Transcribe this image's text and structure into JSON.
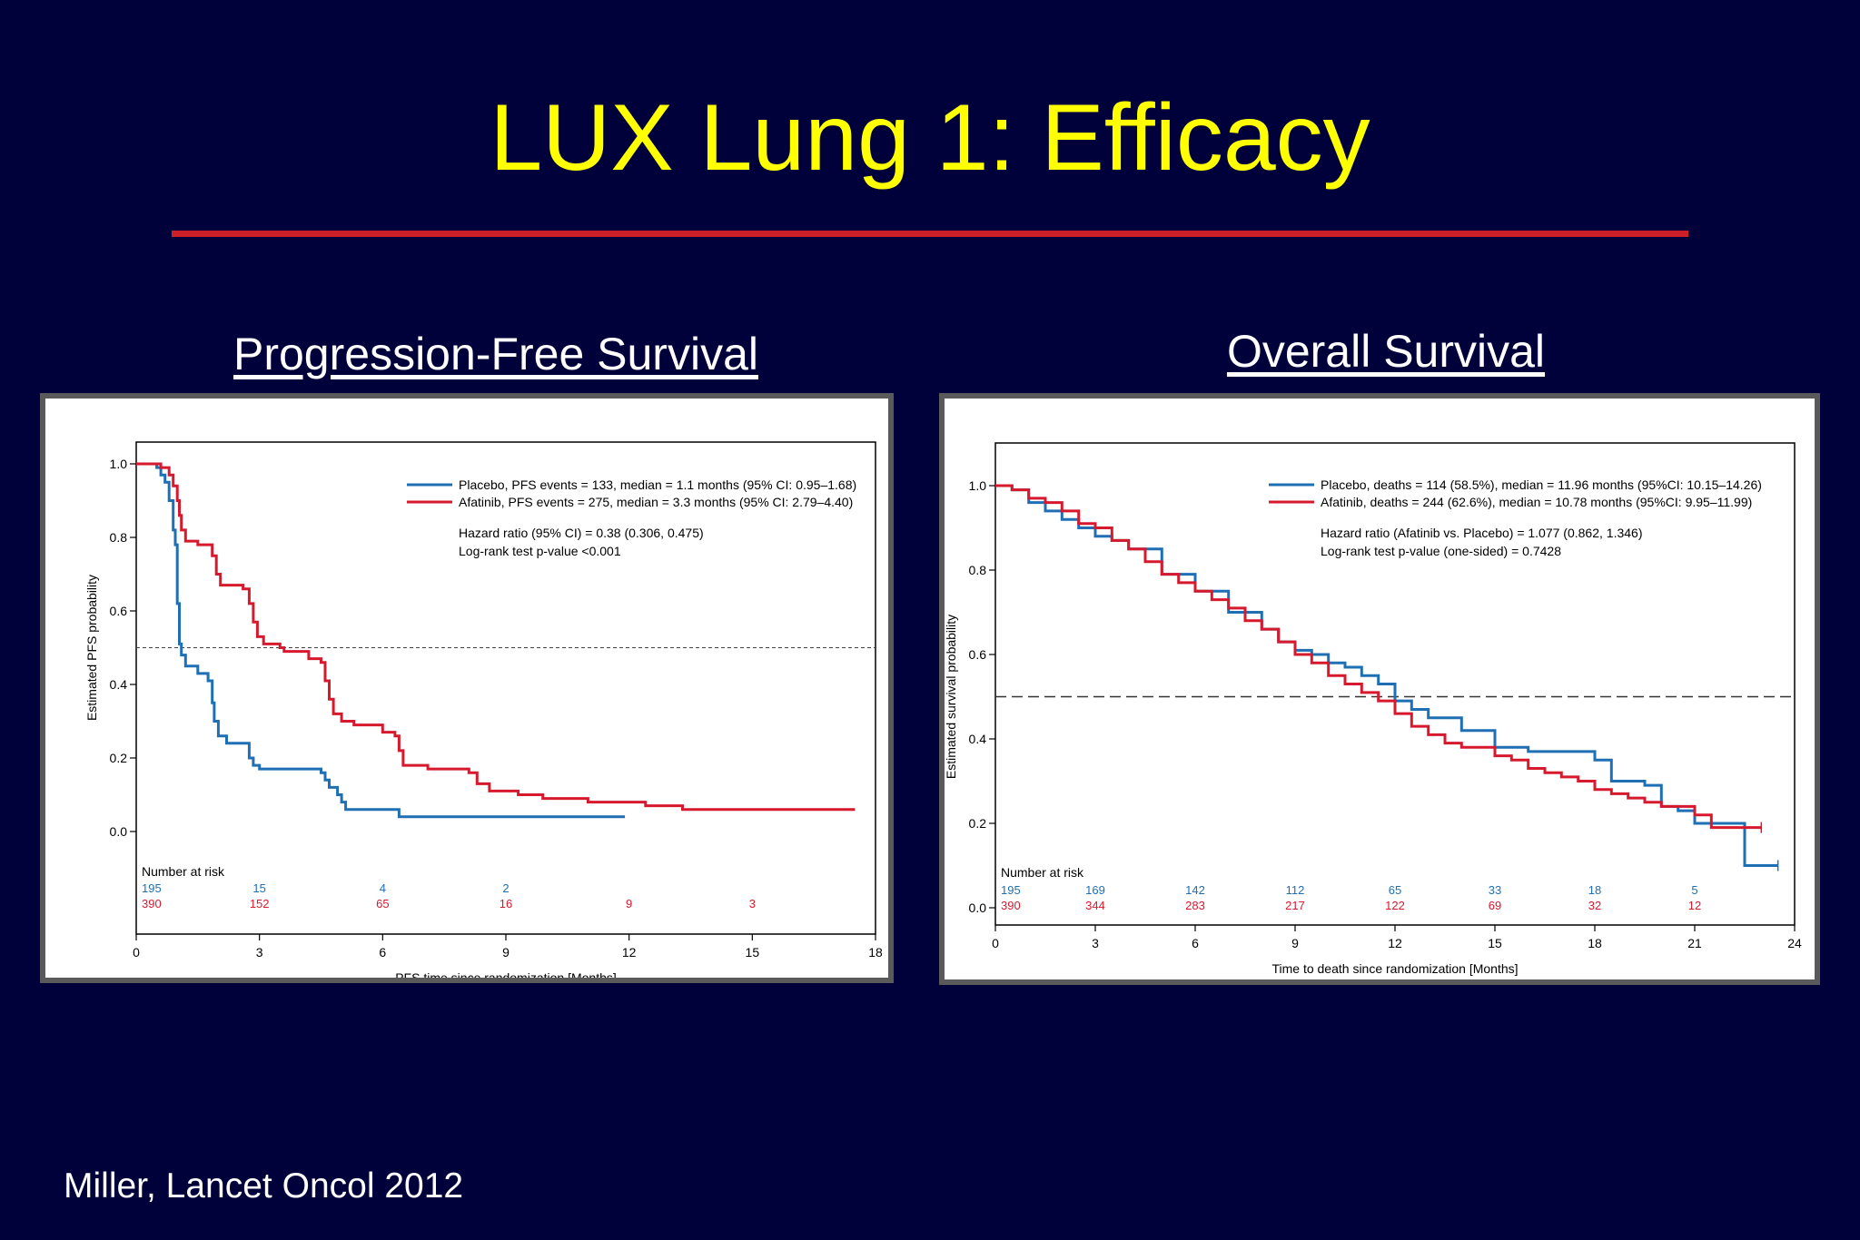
{
  "slide": {
    "title": "LUX Lung 1: Efficacy",
    "citation": "Miller, Lancet Oncol 2012",
    "colors": {
      "background": "#00003a",
      "title": "#ffff00",
      "rule": "#cc1f2a",
      "heading": "#ffffff",
      "placebo": "#1f6fb5",
      "afatinib": "#d7192e"
    }
  },
  "chart_data": [
    {
      "type": "line",
      "heading": "Progression-Free Survival",
      "xlabel": "PFS time since randomization [Months]",
      "ylabel": "Estimated PFS probability",
      "xlim": [
        0,
        18
      ],
      "ylim": [
        0,
        1
      ],
      "xticks": [
        "0",
        "3",
        "6",
        "9",
        "12",
        "15",
        "18"
      ],
      "yticks": [
        "0.0",
        "0.2",
        "0.4",
        "0.6",
        "0.8",
        "1.0"
      ],
      "reference_line": 0.5,
      "legend_placement": "top-right",
      "legend": [
        "Placebo, PFS events = 133, median = 1.1 months (95% CI: 0.95–1.68)",
        "Afatinib, PFS events = 275, median = 3.3 months (95% CI: 2.79–4.40)"
      ],
      "annotations": [
        "Hazard ratio (95% CI) = 0.38 (0.306, 0.475)",
        "Log-rank test p-value <0.001"
      ],
      "risk_table": {
        "title": "Number at risk",
        "times": [
          0,
          3,
          6,
          9,
          12,
          15
        ],
        "rows": [
          {
            "name": "Placebo",
            "values": [
              "195",
              "15",
              "4",
              "2",
              "",
              ""
            ]
          },
          {
            "name": "Afatinib",
            "values": [
              "390",
              "152",
              "65",
              "16",
              "9",
              "3"
            ]
          }
        ]
      },
      "series": [
        {
          "name": "Placebo",
          "x": [
            0,
            0.4,
            0.5,
            0.6,
            0.7,
            0.8,
            0.9,
            0.95,
            1.0,
            1.05,
            1.1,
            1.2,
            1.3,
            1.5,
            1.75,
            1.85,
            1.9,
            2.0,
            2.2,
            2.6,
            2.75,
            2.85,
            3.0,
            3.3,
            4.5,
            4.6,
            4.7,
            4.9,
            5.0,
            5.1,
            6.3,
            6.4,
            11.9
          ],
          "y": [
            1.0,
            1.0,
            0.99,
            0.97,
            0.95,
            0.9,
            0.82,
            0.78,
            0.62,
            0.51,
            0.48,
            0.45,
            0.45,
            0.43,
            0.41,
            0.35,
            0.3,
            0.26,
            0.24,
            0.24,
            0.2,
            0.18,
            0.17,
            0.17,
            0.16,
            0.14,
            0.12,
            0.1,
            0.08,
            0.06,
            0.06,
            0.04,
            0.04
          ]
        },
        {
          "name": "Afatinib",
          "x": [
            0,
            0.6,
            0.8,
            0.9,
            1.0,
            1.05,
            1.1,
            1.2,
            1.5,
            1.85,
            1.95,
            2.05,
            2.6,
            2.75,
            2.85,
            2.95,
            3.1,
            3.5,
            3.6,
            4.2,
            4.5,
            4.6,
            4.7,
            4.8,
            5.0,
            5.3,
            6.0,
            6.3,
            6.4,
            6.5,
            7.1,
            8.1,
            8.3,
            8.6,
            9.3,
            9.9,
            10.0,
            11.0,
            12.4,
            13.3,
            17.5
          ],
          "y": [
            1.0,
            0.99,
            0.97,
            0.94,
            0.9,
            0.86,
            0.82,
            0.79,
            0.78,
            0.75,
            0.7,
            0.67,
            0.66,
            0.62,
            0.57,
            0.53,
            0.51,
            0.5,
            0.49,
            0.47,
            0.46,
            0.41,
            0.36,
            0.32,
            0.3,
            0.29,
            0.27,
            0.26,
            0.22,
            0.18,
            0.17,
            0.16,
            0.13,
            0.11,
            0.1,
            0.09,
            0.09,
            0.08,
            0.07,
            0.06,
            0.06
          ]
        }
      ]
    },
    {
      "type": "line",
      "heading": "Overall Survival",
      "xlabel": "Time to death since randomization [Months]",
      "ylabel": "Estimated survival probability",
      "xlim": [
        0,
        24
      ],
      "ylim": [
        0,
        1
      ],
      "xticks": [
        "0",
        "3",
        "6",
        "9",
        "12",
        "15",
        "18",
        "21",
        "24"
      ],
      "yticks": [
        "0.0",
        "0.2",
        "0.4",
        "0.6",
        "0.8",
        "1.0"
      ],
      "reference_line": 0.5,
      "legend_placement": "top-right",
      "legend": [
        "Placebo, deaths = 114 (58.5%), median = 11.96 months (95%CI: 10.15–14.26)",
        "Afatinib, deaths = 244 (62.6%), median = 10.78 months (95%CI: 9.95–11.99)"
      ],
      "annotations": [
        "Hazard ratio (Afatinib vs. Placebo) = 1.077 (0.862, 1.346)",
        "Log-rank test p-value (one-sided) = 0.7428"
      ],
      "risk_table": {
        "title": "Number at risk",
        "times": [
          0,
          3,
          6,
          9,
          12,
          15,
          18,
          21
        ],
        "rows": [
          {
            "name": "Placebo",
            "values": [
              "195",
              "169",
              "142",
              "112",
              "65",
              "33",
              "18",
              "5"
            ]
          },
          {
            "name": "Afatinib",
            "values": [
              "390",
              "344",
              "283",
              "217",
              "122",
              "69",
              "32",
              "12"
            ]
          }
        ]
      },
      "series": [
        {
          "name": "Placebo",
          "x": [
            0,
            0.5,
            1.0,
            1.5,
            2.0,
            2.5,
            3.0,
            3.5,
            4.0,
            5.0,
            6.0,
            7.0,
            8.0,
            8.5,
            9.0,
            9.5,
            10.0,
            10.5,
            11.0,
            11.5,
            12.0,
            12.5,
            13.0,
            14.0,
            15.0,
            16.0,
            17.0,
            18.0,
            18.5,
            19.0,
            19.5,
            20.0,
            20.5,
            21.0,
            22.0,
            22.5,
            23.5
          ],
          "y": [
            1.0,
            0.99,
            0.96,
            0.94,
            0.92,
            0.9,
            0.88,
            0.87,
            0.85,
            0.79,
            0.75,
            0.7,
            0.66,
            0.63,
            0.61,
            0.6,
            0.58,
            0.57,
            0.55,
            0.53,
            0.49,
            0.47,
            0.45,
            0.42,
            0.38,
            0.37,
            0.37,
            0.35,
            0.3,
            0.3,
            0.29,
            0.24,
            0.23,
            0.2,
            0.2,
            0.1,
            0.1
          ]
        },
        {
          "name": "Afatinib",
          "x": [
            0,
            0.5,
            1.0,
            1.5,
            2.0,
            2.5,
            3.0,
            3.5,
            4.0,
            4.5,
            5.0,
            5.5,
            6.0,
            6.5,
            7.0,
            7.5,
            8.0,
            8.5,
            9.0,
            9.5,
            10.0,
            10.5,
            11.0,
            11.5,
            12.0,
            12.5,
            13.0,
            13.5,
            14.0,
            15.0,
            15.5,
            16.0,
            16.5,
            17.0,
            17.5,
            18.0,
            18.5,
            19.0,
            19.5,
            20.0,
            21.0,
            21.5,
            23.0
          ],
          "y": [
            1.0,
            0.99,
            0.97,
            0.96,
            0.94,
            0.91,
            0.9,
            0.87,
            0.85,
            0.82,
            0.79,
            0.77,
            0.75,
            0.73,
            0.71,
            0.68,
            0.66,
            0.63,
            0.6,
            0.58,
            0.55,
            0.53,
            0.51,
            0.49,
            0.46,
            0.43,
            0.41,
            0.39,
            0.38,
            0.36,
            0.35,
            0.33,
            0.32,
            0.31,
            0.3,
            0.28,
            0.27,
            0.26,
            0.25,
            0.24,
            0.22,
            0.19,
            0.19
          ]
        }
      ]
    }
  ]
}
